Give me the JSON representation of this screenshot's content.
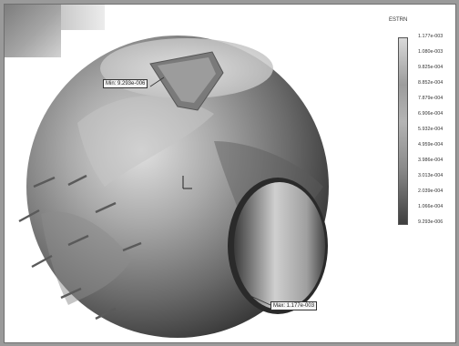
{
  "legend": {
    "title": "ESTRN",
    "ticks": [
      "1.177e-003",
      "1.080e-003",
      "9.825e-004",
      "8.852e-004",
      "7.879e-004",
      "6.906e-004",
      "5.932e-004",
      "4.959e-004",
      "3.986e-004",
      "3.013e-004",
      "2.039e-004",
      "1.066e-004",
      "9.293e-006"
    ]
  },
  "probes": {
    "min_label": "Min: 9.293e-006",
    "max_label": "Max: 1.177e-003"
  },
  "colors": {
    "background": "#ffffff",
    "sphere_light": "#d8d8d8",
    "sphere_dark": "#3a3a3a"
  }
}
